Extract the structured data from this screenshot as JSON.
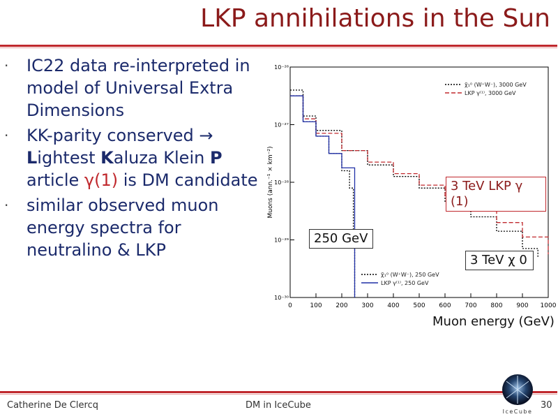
{
  "slide": {
    "title": "LKP annihilations in the Sun"
  },
  "bullets": {
    "b1": "IC22 data re-interpreted in model of Universal Extra Dimensions",
    "b2_pre": "KK-parity conserved → ",
    "b2_L": "L",
    "b2_mid1": "ightest ",
    "b2_K": "K",
    "b2_mid2": "aluza Klein ",
    "b2_P": "P",
    "b2_mid3": "article ",
    "b2_gamma": "γ(1)",
    "b2_post": " is DM candidate",
    "b3": "similar observed muon energy spectra for neutralino & LKP"
  },
  "callouts": {
    "gev250": "250 GeV",
    "lkp3tev": "3 TeV LKP γ (1)",
    "chi3tev": "3 TeV χ 0"
  },
  "xcaption": "Muon energy (GeV)",
  "footer": {
    "author": "Catherine De Clercq",
    "center": "DM in IceCube",
    "page": "30",
    "logo_text": "IceCube"
  },
  "chart_data": {
    "type": "line",
    "ylabel": "Muons (ann.⁻¹ × km⁻²)",
    "x_ticks": [
      "0",
      "100",
      "200",
      "300",
      "400",
      "500",
      "600",
      "700",
      "800",
      "900",
      "1000"
    ],
    "y_ticks": [
      "10⁻³⁰",
      "10⁻²⁹",
      "10⁻²⁸",
      "10⁻²⁷",
      "10⁻²⁶"
    ],
    "xlim": [
      0,
      1000
    ],
    "ylim_log10": [
      -30,
      -26
    ],
    "legend_top": [
      "χ̃₁⁰ (W⁺W⁻), 3000 GeV",
      "LKP γ⁽¹⁾, 3000 GeV"
    ],
    "legend_bottom": [
      "χ̃₁⁰ (W⁺W⁻), 250 GeV",
      "LKP γ⁽¹⁾, 250 GeV"
    ],
    "series": [
      {
        "name": "χ̃₁⁰ (W⁺W⁻), 3000 GeV",
        "color": "#000000",
        "dash": "2,2",
        "points": [
          [
            0,
            -26.4
          ],
          [
            50,
            -26.85
          ],
          [
            100,
            -27.1
          ],
          [
            200,
            -27.45
          ],
          [
            300,
            -27.7
          ],
          [
            400,
            -27.9
          ],
          [
            500,
            -28.1
          ],
          [
            600,
            -28.35
          ],
          [
            700,
            -28.6
          ],
          [
            800,
            -28.85
          ],
          [
            900,
            -29.15
          ],
          [
            960,
            -29.3
          ]
        ]
      },
      {
        "name": "LKP γ⁽¹⁾, 3000 GeV",
        "color": "#c0282d",
        "dash": "6,3",
        "points": [
          [
            0,
            -26.5
          ],
          [
            50,
            -26.9
          ],
          [
            100,
            -27.15
          ],
          [
            200,
            -27.45
          ],
          [
            300,
            -27.65
          ],
          [
            400,
            -27.85
          ],
          [
            500,
            -28.05
          ],
          [
            600,
            -28.25
          ],
          [
            700,
            -28.45
          ],
          [
            800,
            -28.7
          ],
          [
            900,
            -28.95
          ],
          [
            1000,
            -29.25
          ]
        ]
      },
      {
        "name": "χ̃₁⁰ (W⁺W⁻), 250 GeV",
        "color": "#000000",
        "dash": "2,2",
        "points": [
          [
            0,
            -26.5
          ],
          [
            50,
            -26.95
          ],
          [
            100,
            -27.2
          ],
          [
            150,
            -27.5
          ],
          [
            200,
            -27.8
          ],
          [
            230,
            -28.1
          ],
          [
            245,
            -29.0
          ],
          [
            250,
            -30.0
          ]
        ]
      },
      {
        "name": "LKP γ⁽¹⁾, 250 GeV",
        "color": "#1f2fa6",
        "dash": "",
        "points": [
          [
            0,
            -26.5
          ],
          [
            50,
            -26.95
          ],
          [
            100,
            -27.2
          ],
          [
            150,
            -27.5
          ],
          [
            200,
            -27.75
          ],
          [
            240,
            -27.75
          ],
          [
            250,
            -30.0
          ]
        ]
      }
    ]
  }
}
